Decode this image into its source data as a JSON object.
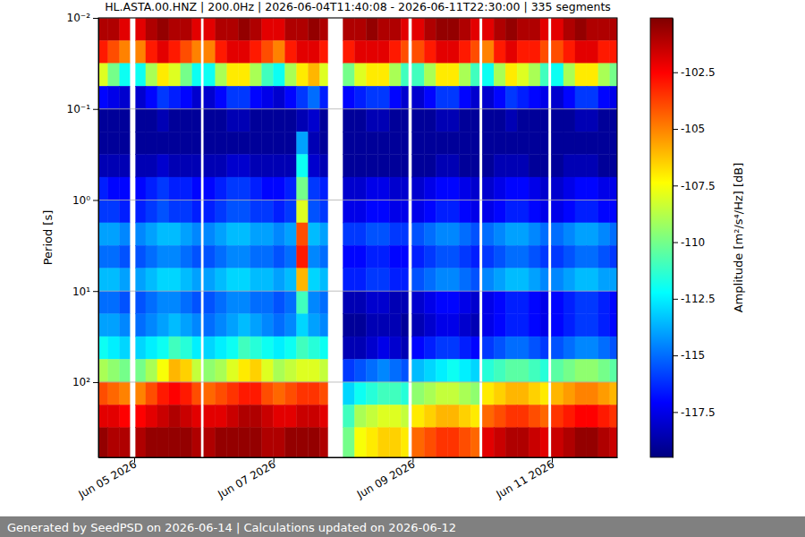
{
  "chart_data": {
    "type": "heatmap",
    "title": "HL.ASTA.00.HNZ | 200.0Hz | 2026-06-04T11:40:08 - 2026-06-11T22:30:00 | 335 segments",
    "y_label": "Period [s]",
    "log": "y",
    "grid": "y",
    "xlim": [
      "2026-06-04T11:40",
      "2026-06-11T22:30"
    ],
    "xticks": [
      {
        "value": "2026-06-05T00:00",
        "label": "Jun 05 2026"
      },
      {
        "value": "2026-06-07T00:00",
        "label": "Jun 07 2026"
      },
      {
        "value": "2026-06-09T00:00",
        "label": "Jun 09 2026"
      },
      {
        "value": "2026-06-11T00:00",
        "label": "Jun 11 2026"
      }
    ],
    "ylim": [
      0.01,
      670
    ],
    "yticks": [
      {
        "value": 0.01,
        "label": "10⁻²"
      },
      {
        "value": 0.1,
        "label": "10⁻¹"
      },
      {
        "value": 1,
        "label": "10⁰"
      },
      {
        "value": 10,
        "label": "10¹"
      },
      {
        "value": 100,
        "label": "10²"
      }
    ],
    "x_bins": [
      "2026-06-04T11:40",
      "2026-06-04T15:00",
      "2026-06-04T19:00",
      "2026-06-04T22:30",
      "2026-06-05T00:30",
      "2026-06-05T04:00",
      "2026-06-05T08:00",
      "2026-06-05T12:00",
      "2026-06-05T16:00",
      "2026-06-05T20:00",
      "2026-06-05T23:00",
      "2026-06-06T00:00",
      "2026-06-06T04:00",
      "2026-06-06T08:00",
      "2026-06-06T12:00",
      "2026-06-06T16:00",
      "2026-06-06T20:00",
      "2026-06-07T00:00",
      "2026-06-07T04:00",
      "2026-06-07T08:00",
      "2026-06-07T12:00",
      "2026-06-07T16:00",
      "2026-06-07T18:45",
      "2026-06-08T00:00",
      "2026-06-08T04:00",
      "2026-06-08T08:00",
      "2026-06-08T12:00",
      "2026-06-08T16:00",
      "2026-06-08T20:00",
      "2026-06-08T22:30",
      "2026-06-08T23:45",
      "2026-06-09T04:00",
      "2026-06-09T08:00",
      "2026-06-09T12:00",
      "2026-06-09T16:00",
      "2026-06-09T20:00",
      "2026-06-09T23:00",
      "2026-06-10T00:00",
      "2026-06-10T04:00",
      "2026-06-10T08:00",
      "2026-06-10T12:00",
      "2026-06-10T16:00",
      "2026-06-10T20:00",
      "2026-06-10T22:45",
      "2026-06-10T23:45",
      "2026-06-11T04:00",
      "2026-06-11T08:00",
      "2026-06-11T12:00",
      "2026-06-11T16:00",
      "2026-06-11T20:00",
      "2026-06-11T22:30"
    ],
    "y_bins": [
      0.01,
      0.0178,
      0.0316,
      0.0562,
      0.1,
      0.178,
      0.316,
      0.562,
      1,
      1.78,
      3.16,
      5.62,
      10,
      17.8,
      31.6,
      56.2,
      100,
      178,
      316,
      670
    ],
    "values": [
      [
        -101,
        -101,
        -102,
        null,
        -102,
        -101,
        -100.5,
        -101,
        -101,
        -102,
        null,
        -102,
        -101,
        -101,
        -100.5,
        -101,
        -102,
        -102,
        -101,
        -101,
        -100.5,
        -101,
        null,
        -101,
        -101,
        -100.5,
        -101,
        -101,
        -102,
        null,
        -102,
        -101,
        -100.5,
        -100.5,
        -101,
        -102,
        null,
        -102,
        -101,
        -100.5,
        -101,
        -101,
        -102,
        null,
        -102,
        -101,
        -100.5,
        -101,
        -101,
        -101
      ],
      [
        -103,
        -104,
        -105,
        null,
        -105,
        -103,
        -102,
        -103,
        -104,
        -105,
        null,
        -105,
        -103,
        -102,
        -102,
        -103,
        -104,
        -105,
        -103,
        -102,
        -102,
        -103,
        null,
        -103,
        -102,
        -102,
        -102,
        -103,
        -104,
        null,
        -104,
        -103,
        -102,
        -102,
        -103,
        -104,
        null,
        -105,
        -103,
        -102,
        -103,
        -103,
        -104,
        null,
        -104,
        -103,
        -102,
        -102,
        -103,
        -103
      ],
      [
        -108,
        -110,
        -112,
        null,
        -112,
        -109,
        -107,
        -108,
        -110,
        -112,
        null,
        -112,
        -109,
        -107,
        -107,
        -109,
        -111,
        -112,
        -109,
        -107,
        -106,
        -108,
        null,
        -110,
        -108,
        -107,
        -107,
        -109,
        -111,
        null,
        -111,
        -109,
        -107,
        -107,
        -109,
        -111,
        null,
        -112,
        -109,
        -107,
        -108,
        -109,
        -111,
        null,
        -112,
        -109,
        -107,
        -107,
        -109,
        -110
      ],
      [
        -117,
        -117.5,
        -118,
        null,
        -118,
        -117,
        -116,
        -116.5,
        -117,
        -118,
        null,
        -118,
        -117,
        -116,
        -116,
        -117,
        -117.5,
        -118,
        -117,
        -116,
        -115,
        -116.5,
        null,
        -117,
        -116.5,
        -116,
        -116,
        -117,
        -118,
        null,
        -118,
        -117,
        -116,
        -116,
        -117,
        -118,
        null,
        -118,
        -117,
        -116,
        -116.5,
        -117,
        -117.5,
        null,
        -118,
        -117,
        -116,
        -116,
        -117,
        -117.5
      ],
      [
        -119,
        -119,
        -119,
        null,
        -119,
        -119,
        -118.5,
        -119,
        -119,
        -119,
        null,
        -119,
        -119,
        -118.5,
        -118.5,
        -119,
        -119,
        -119,
        -119,
        -118.5,
        -118,
        -119,
        null,
        -119,
        -119,
        -118.5,
        -118.5,
        -119,
        -119,
        null,
        -119,
        -119,
        -118.5,
        -118.5,
        -119,
        -119,
        null,
        -119,
        -119,
        -118.5,
        -119,
        -119,
        -119,
        null,
        -119,
        -119,
        -118.5,
        -118.5,
        -119,
        -119
      ],
      [
        -119,
        -119,
        -119,
        null,
        -119,
        -119,
        -119,
        -119,
        -119,
        -119,
        null,
        -119,
        -119,
        -119,
        -119,
        -119,
        -119,
        -119,
        -119,
        -114,
        -118.5,
        -119,
        null,
        -119,
        -119,
        -119,
        -119,
        -119,
        -119,
        null,
        -119,
        -119,
        -119,
        -119,
        -119,
        -119,
        null,
        -119,
        -119,
        -119,
        -119,
        -119,
        -119,
        null,
        -119,
        -119,
        -119,
        -119,
        -119,
        -119
      ],
      [
        -118.5,
        -118.5,
        -118.5,
        null,
        -118.5,
        -118.5,
        -118,
        -118.5,
        -118.5,
        -118.5,
        null,
        -118.5,
        -118.5,
        -118,
        -118,
        -118.5,
        -118.5,
        -118.5,
        -118.5,
        -112,
        -118,
        -118.5,
        null,
        -119,
        -119,
        -119,
        -119,
        -119,
        -119,
        null,
        -119,
        -119,
        -118.5,
        -118.5,
        -119,
        -119,
        null,
        -119,
        -118.5,
        -118.5,
        -118.5,
        -119,
        -119,
        null,
        -119,
        -118.5,
        -118.5,
        -118.5,
        -119,
        -119
      ],
      [
        -116.5,
        -117,
        -117,
        null,
        -117,
        -116.5,
        -116,
        -116.5,
        -116.5,
        -117,
        null,
        -117,
        -116.5,
        -116,
        -116,
        -116.5,
        -117,
        -117,
        -116.5,
        -110,
        -116,
        -116.5,
        null,
        -118,
        -118,
        -117.5,
        -117.5,
        -118,
        -118,
        null,
        -118,
        -117.5,
        -117,
        -117,
        -117.5,
        -118,
        null,
        -118,
        -117.5,
        -117,
        -117,
        -117.5,
        -118,
        null,
        -118,
        -117.5,
        -117,
        -117,
        -117.5,
        -117.5
      ],
      [
        -116,
        -116,
        -116.5,
        null,
        -116.5,
        -116,
        -115.5,
        -116,
        -116,
        -116.5,
        null,
        -116.5,
        -116,
        -115.5,
        -115.5,
        -116,
        -116,
        -116.5,
        -116,
        -108,
        -115.5,
        -116,
        null,
        -117.5,
        -117.5,
        -117,
        -117,
        -117.5,
        -117.5,
        null,
        -117.5,
        -117,
        -116.5,
        -116.5,
        -117,
        -117.5,
        null,
        -117.5,
        -117,
        -116.5,
        -116.5,
        -117,
        -117.5,
        null,
        -117.5,
        -117,
        -116.5,
        -116.5,
        -117,
        -117
      ],
      [
        -114,
        -114,
        -114.5,
        null,
        -114.5,
        -114,
        -113.5,
        -113.5,
        -114,
        -114.5,
        null,
        -114.5,
        -114,
        -113.5,
        -113.5,
        -114,
        -114,
        -114.5,
        -114,
        -104,
        -113.5,
        -114,
        null,
        -116,
        -116,
        -115.5,
        -115.5,
        -116,
        -116,
        null,
        -115.5,
        -115,
        -114.5,
        -114.5,
        -115,
        -115.5,
        null,
        -115,
        -114.5,
        -114,
        -114,
        -114.5,
        -115,
        null,
        -115,
        -114.5,
        -114,
        -114,
        -114.5,
        -115
      ],
      [
        -115,
        -115,
        -115.5,
        null,
        -115.5,
        -115,
        -114.5,
        -114.5,
        -115,
        -115.5,
        null,
        -115.5,
        -115,
        -114.5,
        -114.5,
        -115,
        -115,
        -115.5,
        -115,
        -103,
        -114.5,
        -115,
        null,
        -117,
        -117,
        -116.5,
        -116.5,
        -117,
        -117,
        null,
        -116.5,
        -116,
        -115.5,
        -115.5,
        -116,
        -116.5,
        null,
        -116,
        -115.5,
        -115,
        -115,
        -115.5,
        -116,
        null,
        -116,
        -115.5,
        -115,
        -115,
        -115.5,
        -116
      ],
      [
        -113.5,
        -113.5,
        -114,
        null,
        -114,
        -113.5,
        -113,
        -113,
        -113.5,
        -114,
        null,
        -114,
        -113.5,
        -113,
        -113,
        -113.5,
        -113.5,
        -114,
        -113.5,
        -106,
        -113,
        -113.5,
        null,
        -116.5,
        -116.5,
        -116,
        -116,
        -116.5,
        -116.5,
        null,
        -115.5,
        -115,
        -114.5,
        -114.5,
        -115,
        -115.5,
        null,
        -114.5,
        -114,
        -113.5,
        -113.5,
        -114,
        -114.5,
        null,
        -114.5,
        -114,
        -113.5,
        -113.5,
        -114,
        -114
      ],
      [
        -115,
        -115,
        -115.5,
        null,
        -115.5,
        -115,
        -114.5,
        -114.5,
        -115,
        -115.5,
        null,
        -115.5,
        -115,
        -114.5,
        -114.5,
        -115,
        -115,
        -115.5,
        -115,
        -111,
        -114.5,
        -115,
        null,
        -118.5,
        -118.5,
        -118,
        -118,
        -118.5,
        -118.5,
        null,
        -118,
        -117.5,
        -117,
        -117,
        -117.5,
        -118,
        null,
        -117.5,
        -117,
        -116.5,
        -116.5,
        -117,
        -117.5,
        null,
        -117,
        -116.5,
        -116,
        -116,
        -116.5,
        -117
      ],
      [
        -114,
        -114,
        -114.5,
        null,
        -115,
        -114.5,
        -114,
        -113.5,
        -114,
        -114.5,
        null,
        -115,
        -114.5,
        -114,
        -113.5,
        -114,
        -114.5,
        -115,
        -114.5,
        -113,
        -114,
        -114.5,
        null,
        -119,
        -119,
        -118.5,
        -118.5,
        -118.5,
        -119,
        null,
        -118.5,
        -118,
        -117.5,
        -117.5,
        -118,
        -118.5,
        null,
        -117.5,
        -117,
        -116.5,
        -116.5,
        -117,
        -117.5,
        null,
        -117,
        -116.5,
        -116,
        -116,
        -116.5,
        -117
      ],
      [
        -112,
        -112.5,
        -113,
        null,
        -113,
        -112.5,
        -112,
        -111,
        -111.5,
        -112.5,
        null,
        -113,
        -112.5,
        -112,
        -111,
        -111.5,
        -112,
        -112.5,
        -112,
        -111,
        -111.5,
        -112,
        null,
        -118.5,
        -118.5,
        -118,
        -117.5,
        -118,
        -118.5,
        null,
        -117,
        -116.5,
        -116,
        -116,
        -116.5,
        -117,
        null,
        -116,
        -115.5,
        -115,
        -115,
        -115.5,
        -116,
        null,
        -115.5,
        -115,
        -114.5,
        -114.5,
        -115,
        -115.5
      ],
      [
        -109,
        -109.5,
        -110,
        null,
        -110,
        -109,
        -107.5,
        -106,
        -106.5,
        -108.5,
        null,
        -109.5,
        -109,
        -108,
        -107,
        -106.5,
        -108,
        -109,
        -108.5,
        -108,
        -108,
        -108.5,
        null,
        -116,
        -115.5,
        -115,
        -114.5,
        -115,
        -115.5,
        null,
        -113.5,
        -113,
        -112.5,
        -112,
        -112.5,
        -113,
        null,
        -111.5,
        -111,
        -110.5,
        -110.5,
        -111,
        -111.5,
        null,
        -110.5,
        -110,
        -109.5,
        -109.5,
        -110,
        -110.5
      ],
      [
        -104,
        -104.5,
        -105,
        null,
        -105,
        -104,
        -103,
        -102.5,
        -103,
        -104,
        null,
        -104.5,
        -104,
        -103.5,
        -103,
        -103,
        -104,
        -104.5,
        -104,
        -103.5,
        -103.5,
        -104,
        null,
        -113,
        -112,
        -111.5,
        -111,
        -111,
        -111.5,
        null,
        -109.5,
        -109,
        -108.5,
        -108.5,
        -109,
        -109.5,
        null,
        -107,
        -106.5,
        -106,
        -106,
        -106.5,
        -107,
        null,
        -106,
        -105.5,
        -105,
        -105,
        -105.5,
        -106
      ],
      [
        -102,
        -102,
        -102.5,
        null,
        -102.5,
        -102,
        -101.5,
        -101,
        -101.5,
        -102,
        null,
        -102,
        -102,
        -101.5,
        -101,
        -101,
        -101.5,
        -102,
        -102,
        -101.5,
        -101.5,
        -102,
        null,
        -111,
        -109,
        -108.5,
        -108,
        -108,
        -108.5,
        null,
        -107,
        -106.5,
        -106,
        -106,
        -106.5,
        -107,
        null,
        -104.5,
        -104,
        -103.5,
        -103.5,
        -104,
        -104.5,
        null,
        -103.5,
        -103,
        -102.5,
        -102.5,
        -103,
        -103.5
      ],
      [
        -100.5,
        -101,
        -101,
        null,
        -101,
        -100.5,
        -100.5,
        -100.5,
        -100.5,
        -101,
        null,
        -101,
        -100.5,
        -100.5,
        -100.5,
        -100.5,
        -101,
        -101,
        -100.5,
        -100.5,
        -100.5,
        -101,
        null,
        -110,
        -107.5,
        -107,
        -106.5,
        -106.5,
        -107,
        null,
        -104.5,
        -104,
        -103.5,
        -103.5,
        -104,
        -104.5,
        null,
        -102,
        -101.5,
        -101,
        -101,
        -101.5,
        -102,
        null,
        -101.5,
        -101,
        -100.5,
        -100.5,
        -101,
        -101.5
      ]
    ],
    "colorbar": {
      "label": "Amplitude [m²/s⁴/Hz] [dB]",
      "range": [
        -119.5,
        -100.1
      ],
      "ticks": [
        -117.5,
        -115,
        -112.5,
        -110,
        -107.5,
        -105,
        -102.5
      ]
    }
  },
  "footer": "Generated by SeedPSD on 2026-06-14 | Calculations updated on 2026-06-12"
}
